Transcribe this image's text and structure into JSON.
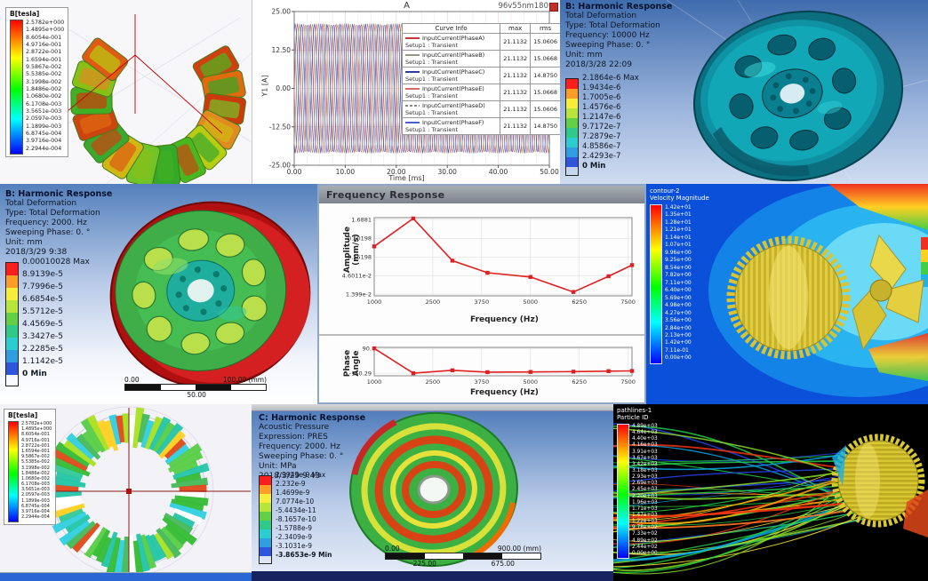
{
  "colors": {
    "ansys_bands": [
      "#fc1d1d",
      "#fc9d27",
      "#f6ec3a",
      "#b8e53a",
      "#62cf45",
      "#2fc98a",
      "#2ccdd1",
      "#2f9de0",
      "#2f55dd"
    ],
    "accent_red": "#e02020"
  },
  "panel_maxwell_top": {
    "legend_title": "B[tesla]",
    "legend_values": [
      "2.5782e+000",
      "1.4895e+000",
      "8.6054e-001",
      "4.9716e-001",
      "2.8722e-001",
      "1.6594e-001",
      "9.5867e-002",
      "5.5385e-002",
      "3.1998e-002",
      "1.8486e-002",
      "1.0680e-002",
      "6.1708e-003",
      "3.5651e-003",
      "2.0597e-003",
      "1.1899e-003",
      "6.8745e-004",
      "3.9716e-004",
      "2.2944e-004"
    ]
  },
  "panel_transient": {
    "plot_title": "A",
    "window_label": "96v55nm180",
    "y_axis_label": "Y1 [A]",
    "x_axis_label": "Time [ms]",
    "y_ticks": [
      "25.00",
      "12.50",
      "0.00",
      "-12.50",
      "-25.00"
    ],
    "x_ticks": [
      "0.00",
      "10.00",
      "20.00",
      "30.00",
      "40.00",
      "50.00"
    ],
    "legend_headers": [
      "Curve Info",
      "max",
      "rms"
    ],
    "legend_rows": [
      {
        "name": "InputCurrent(PhaseA)",
        "setup": "Setup1 : Transient",
        "max": "21.1132",
        "rms": "15.0606",
        "color": "#c23b3b"
      },
      {
        "name": "InputCurrent(PhaseB)",
        "setup": "Setup1 : Transient",
        "max": "21.1132",
        "rms": "15.0668",
        "color": "#8f9b7a"
      },
      {
        "name": "InputCurrent(PhaseC)",
        "setup": "Setup1 : Transient",
        "max": "21.1132",
        "rms": "14.8750",
        "color": "#2f3e9e"
      },
      {
        "name": "InputCurrent(PhaseE)",
        "setup": "Setup1 : Transient",
        "max": "21.1132",
        "rms": "15.0668",
        "color": "#d46a6a"
      },
      {
        "name": "InputCurrent(PhaseD)",
        "setup": "Setup1 : Transient",
        "max": "21.1132",
        "rms": "15.0606",
        "color": "#8a8a8a",
        "dashed": true
      },
      {
        "name": "InputCurrent(PhaseF)",
        "setup": "Setup1 : Transient",
        "max": "21.1132",
        "rms": "14.8750",
        "color": "#4d5fd0"
      }
    ]
  },
  "panel_harmonic_top": {
    "title": "B: Harmonic Response",
    "info_lines": [
      "Total Deformation",
      "Type: Total Deformation",
      "Frequency: 10000 Hz",
      "Sweeping Phase: 0. °",
      "Unit: mm",
      "2018/3/28 22:09"
    ],
    "legend_values": [
      "2.1864e-6 Max",
      "1.9434e-6",
      "1.7005e-6",
      "1.4576e-6",
      "1.2147e-6",
      "9.7172e-7",
      "7.2879e-7",
      "4.8586e-7",
      "2.4293e-7",
      "0 Min"
    ]
  },
  "panel_harmonic_mid": {
    "title": "B: Harmonic Response",
    "info_lines": [
      "Total Deformation",
      "Type: Total Deformation",
      "Frequency: 2000. Hz",
      "Sweeping Phase: 0. °",
      "Unit: mm",
      "2018/3/29 9:38"
    ],
    "legend_values": [
      "0.00010028 Max",
      "8.9139e-5",
      "7.7996e-5",
      "6.6854e-5",
      "5.5712e-5",
      "4.4569e-5",
      "3.3427e-5",
      "2.2285e-5",
      "1.1142e-5",
      "0 Min"
    ],
    "scale_bar": {
      "left": "0.00",
      "right": "100.00 (mm)",
      "middle": "50.00"
    }
  },
  "panel_freq_response": {
    "window_title": "Frequency Response",
    "amplitude_axis_label": "Amplitude (mm/s)",
    "phase_axis_label": "Phase Angle",
    "frequency_axis_label": "Frequency (Hz)",
    "amplitude_y_ticks": [
      "1.6881",
      "0.50198",
      "0.15198",
      "4.6011e-2",
      "1.399e-2"
    ],
    "phase_y_ticks": [
      "90.",
      "-150.29"
    ],
    "x_ticks": [
      "1000",
      "2500",
      "3750",
      "5000",
      "6250",
      "7500"
    ]
  },
  "panel_cfd_contour": {
    "legend_header": "contour-2\nVelocity Magnitude",
    "legend_values": [
      "1.42e+01",
      "1.35e+01",
      "1.28e+01",
      "1.21e+01",
      "1.14e+01",
      "1.07e+01",
      "9.96e+00",
      "9.25e+00",
      "8.54e+00",
      "7.82e+00",
      "7.11e+00",
      "6.40e+00",
      "5.69e+00",
      "4.98e+00",
      "4.27e+00",
      "3.56e+00",
      "2.84e+00",
      "2.13e+00",
      "1.42e+00",
      "7.11e-01",
      "0.00e+00"
    ]
  },
  "panel_maxwell_bottom": {
    "legend_title": "B[tesla]",
    "legend_values": [
      "2.5782e+000",
      "1.4895e+000",
      "8.6054e-001",
      "4.9716e-001",
      "2.8722e-001",
      "1.6594e-001",
      "9.5867e-002",
      "5.5385e-002",
      "3.1998e-002",
      "1.8486e-002",
      "1.0680e-002",
      "6.1708e-003",
      "3.5651e-003",
      "2.0597e-003",
      "1.1899e-003",
      "6.8745e-004",
      "3.9716e-004",
      "2.2944e-004"
    ]
  },
  "panel_harmonic_acoustic": {
    "title": "C: Harmonic Response",
    "info_lines": [
      "Acoustic Pressure",
      "Expression: PRES",
      "Frequency: 2000. Hz",
      "Sweeping Phase: 0. °",
      "Unit: MPa",
      "2018/3/29 9:43"
    ],
    "legend_values": [
      "2.9943e-9 Max",
      "2.232e-9",
      "1.4699e-9",
      "7.0774e-10",
      "-5.4434e-11",
      "-8.1657e-10",
      "-1.5788e-9",
      "-2.3409e-9",
      "-3.1031e-9",
      "-3.8653e-9 Min"
    ],
    "scale_bar": {
      "left": "0.00",
      "right": "900.00 (mm)",
      "bottom_left": "225.00",
      "bottom_right": "675.00"
    }
  },
  "panel_streamlines": {
    "legend_header": "pathlines-1\nParticle ID",
    "legend_values": [
      "4.89e+03",
      "4.64e+03",
      "4.40e+03",
      "4.16e+03",
      "3.91e+03",
      "3.67e+03",
      "3.42e+03",
      "3.18e+03",
      "2.93e+03",
      "2.69e+03",
      "2.45e+03",
      "2.20e+03",
      "1.96e+03",
      "1.71e+03",
      "1.47e+03",
      "1.22e+03",
      "9.78e+02",
      "7.33e+02",
      "4.89e+02",
      "2.44e+02",
      "0.00e+00"
    ]
  },
  "chart_data": [
    {
      "id": "transient-currents",
      "type": "line",
      "title": "A",
      "xlabel": "Time [ms]",
      "ylabel": "Y1 [A]",
      "xlim": [
        0,
        50
      ],
      "ylim": [
        -25,
        25
      ],
      "xticks": [
        0,
        10,
        20,
        30,
        40,
        50
      ],
      "yticks": [
        25,
        12.5,
        0,
        -12.5,
        -25
      ],
      "grid": true,
      "legend_position": "right-overlay",
      "series": [
        {
          "name": "InputCurrent(PhaseA)",
          "waveform": "sine",
          "amplitude": 21.1132,
          "period_ms": 2.5,
          "phase_deg": 0,
          "color": "#c23b3b",
          "max": 21.1132,
          "rms": 15.0606
        },
        {
          "name": "InputCurrent(PhaseB)",
          "waveform": "sine",
          "amplitude": 21.1132,
          "period_ms": 2.5,
          "phase_deg": -60,
          "color": "#8f9b7a",
          "max": 21.1132,
          "rms": 15.0668
        },
        {
          "name": "InputCurrent(PhaseC)",
          "waveform": "sine",
          "amplitude": 21.1132,
          "period_ms": 2.5,
          "phase_deg": -120,
          "color": "#2f3e9e",
          "max": 21.1132,
          "rms": 14.875
        },
        {
          "name": "InputCurrent(PhaseE)",
          "waveform": "sine",
          "amplitude": 21.1132,
          "period_ms": 2.5,
          "phase_deg": -180,
          "color": "#d46a6a",
          "max": 21.1132,
          "rms": 15.0668
        },
        {
          "name": "InputCurrent(PhaseD)",
          "waveform": "sine",
          "amplitude": 21.1132,
          "period_ms": 2.5,
          "phase_deg": -240,
          "color": "#8a8a8a",
          "max": 21.1132,
          "rms": 15.0606
        },
        {
          "name": "InputCurrent(PhaseF)",
          "waveform": "sine",
          "amplitude": 21.1132,
          "period_ms": 2.5,
          "phase_deg": -300,
          "color": "#4d5fd0",
          "max": 21.1132,
          "rms": 14.875
        }
      ]
    },
    {
      "id": "freq-amplitude",
      "type": "line",
      "title": "Frequency Response",
      "xlabel": "Frequency (Hz)",
      "ylabel": "Amplitude (mm/s)",
      "yscale": "log",
      "xlim": [
        1000,
        7600
      ],
      "ylim": [
        0.0125,
        1.9
      ],
      "xticks": [
        1000,
        2500,
        3750,
        5000,
        6250,
        7500
      ],
      "ytick_values": [
        1.6881,
        0.50198,
        0.15198,
        0.046011,
        0.01399
      ],
      "x": [
        1000,
        2000,
        3000,
        3900,
        5000,
        6100,
        7000,
        7600
      ],
      "y": [
        0.3,
        1.8,
        0.12,
        0.055,
        0.042,
        0.016,
        0.044,
        0.09
      ],
      "color": "#e02020",
      "grid": true
    },
    {
      "id": "freq-phase",
      "type": "line",
      "xlabel": "Frequency (Hz)",
      "ylabel": "Phase Angle",
      "xlim": [
        1000,
        7600
      ],
      "ylim": [
        -175,
        100
      ],
      "xticks": [
        1000,
        2500,
        3750,
        5000,
        6250,
        7500
      ],
      "ytick_values": [
        90,
        -150.29
      ],
      "x": [
        1000,
        2000,
        3000,
        3900,
        5000,
        6100,
        7000,
        7600
      ],
      "y": [
        90,
        -150.29,
        -122,
        -140,
        -138,
        -135,
        -130,
        -128
      ],
      "color": "#e02020",
      "grid": false
    }
  ]
}
